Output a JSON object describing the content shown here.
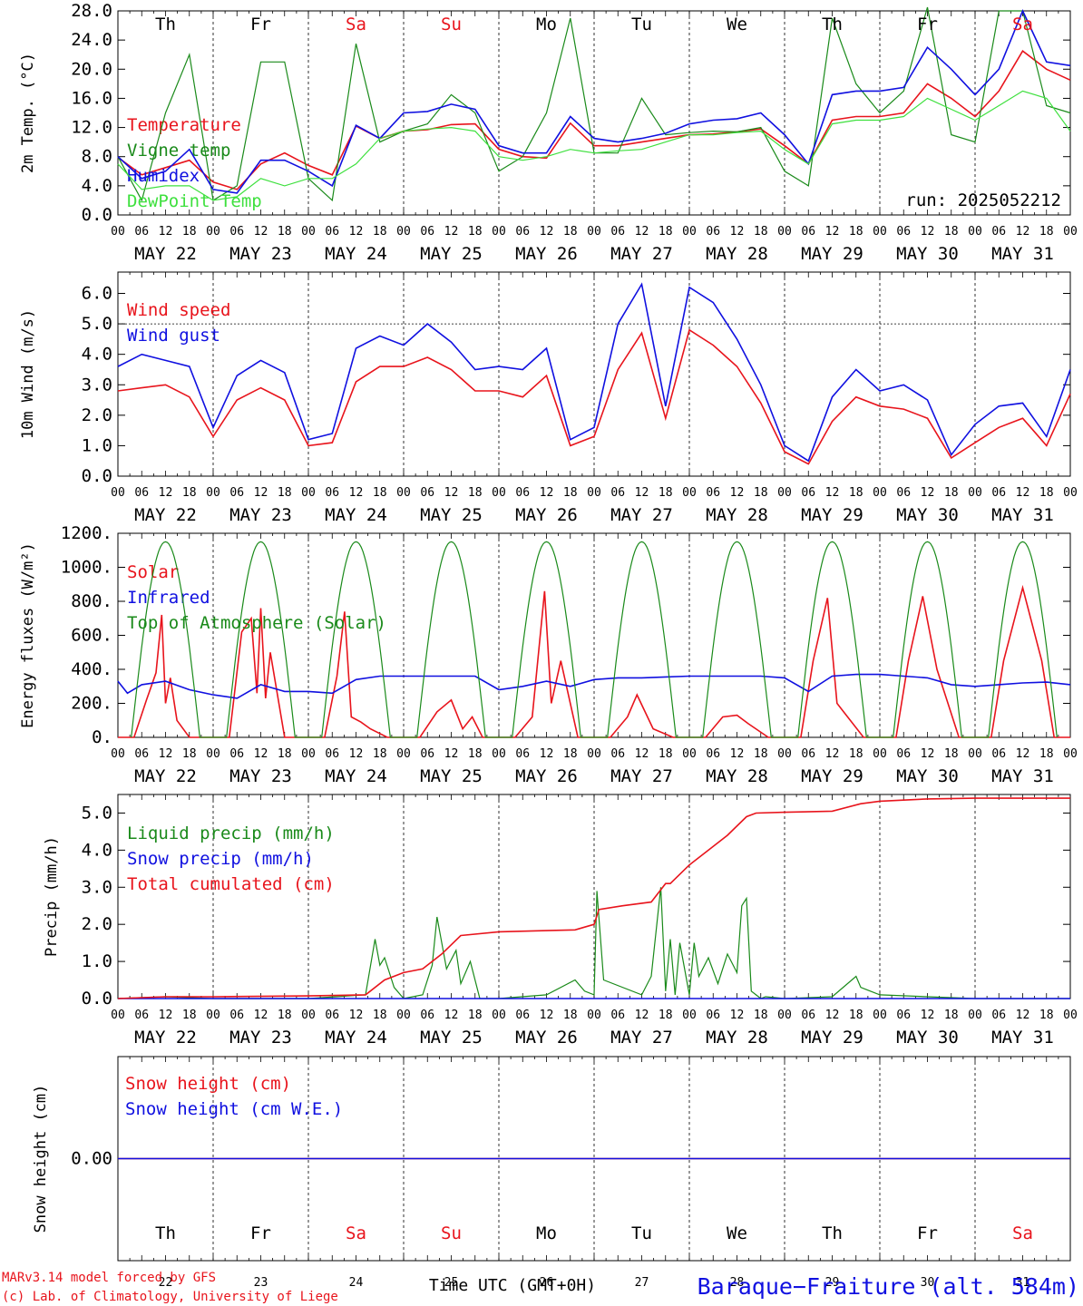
{
  "colors": {
    "red": "#e8141c",
    "darkgreen": "#1a8a1a",
    "blue": "#1010e0",
    "lightgreen": "#3ee03e",
    "weekday": "#000000",
    "weekend": "#e8141c"
  },
  "dates": [
    "MAY 22",
    "MAY 23",
    "MAY 24",
    "MAY 25",
    "MAY 26",
    "MAY 27",
    "MAY 28",
    "MAY 29",
    "MAY 30",
    "MAY 31"
  ],
  "day_numbers": [
    "22",
    "23",
    "24",
    "25",
    "26",
    "27",
    "28",
    "29",
    "30",
    "31"
  ],
  "weekdays": [
    "Th",
    "Fr",
    "Sa",
    "Su",
    "Mo",
    "Tu",
    "We",
    "Th",
    "Fr",
    "Sa"
  ],
  "weekend_flags": [
    false,
    false,
    true,
    true,
    false,
    false,
    false,
    false,
    false,
    true
  ],
  "hour_ticks": [
    "00",
    "06",
    "12",
    "18"
  ],
  "last_tick": "00",
  "footer": {
    "model": "MARv3.14 model forced by GFS",
    "lab": "(c) Lab. of Climatology, University of Liege",
    "xlabel": "Time UTC (GMT+0H)",
    "location": "Baraque−Fraiture (alt. 584m)"
  },
  "chart_data": [
    {
      "type": "line",
      "ylabel": "2m Temp. (°C)",
      "ylim": [
        0,
        28
      ],
      "yticks": [
        "0.0",
        "4.0",
        "8.0",
        "12.0",
        "16.0",
        "20.0",
        "24.0",
        "28.0"
      ],
      "run_label": "run: 2025052212",
      "x_unit": "days since MAY 22 00 UTC",
      "series": [
        {
          "name": "Temperature",
          "color": "red",
          "x": [
            0,
            0.25,
            0.5,
            0.75,
            1,
            1.25,
            1.5,
            1.75,
            2,
            2.25,
            2.5,
            2.75,
            3,
            3.25,
            3.5,
            3.75,
            4,
            4.25,
            4.5,
            4.75,
            5,
            5.25,
            5.5,
            5.75,
            6,
            6.25,
            6.5,
            6.75,
            7,
            7.25,
            7.5,
            7.75,
            8,
            8.25,
            8.5,
            8.75,
            9,
            9.25,
            9.5,
            9.75,
            10
          ],
          "y": [
            7.9,
            5.5,
            6.5,
            7.5,
            4.5,
            3.5,
            7,
            8.5,
            6.8,
            5.5,
            12.2,
            10.5,
            11.5,
            11.7,
            12.4,
            12.5,
            9,
            8,
            7.8,
            12.6,
            9.5,
            9.5,
            10,
            10.5,
            11,
            11.1,
            11.4,
            11.8,
            9.5,
            7,
            13,
            13.5,
            13.5,
            14,
            18,
            16,
            13.5,
            17,
            22.5,
            20,
            18.5
          ]
        },
        {
          "name": "Vigne temp",
          "color": "darkgreen",
          "x": [
            0,
            0.25,
            0.5,
            0.75,
            1,
            1.25,
            1.5,
            1.75,
            2,
            2.25,
            2.5,
            2.75,
            3,
            3.25,
            3.5,
            3.75,
            4,
            4.25,
            4.5,
            4.75,
            5,
            5.25,
            5.5,
            5.75,
            6,
            6.25,
            6.5,
            6.75,
            7,
            7.25,
            7.5,
            7.75,
            8,
            8.25,
            8.5,
            8.75,
            9,
            9.25,
            9.5,
            9.75,
            10
          ],
          "y": [
            8,
            2,
            14,
            22,
            2,
            4,
            21,
            21,
            5,
            2,
            23.5,
            10,
            11.5,
            12.5,
            16.5,
            14,
            6,
            8,
            14,
            27,
            8.5,
            8.5,
            16,
            11,
            11.3,
            11.5,
            11.4,
            12,
            6,
            4,
            27,
            18,
            14,
            17,
            28.5,
            11,
            10,
            28,
            28,
            15,
            14
          ]
        },
        {
          "name": "Humidex",
          "color": "blue",
          "x": [
            0,
            0.25,
            0.5,
            0.75,
            1,
            1.25,
            1.5,
            1.75,
            2,
            2.25,
            2.5,
            2.75,
            3,
            3.25,
            3.5,
            3.75,
            4,
            4.25,
            4.5,
            4.75,
            5,
            5.25,
            5.5,
            5.75,
            6,
            6.25,
            6.5,
            6.75,
            7,
            7.25,
            7.5,
            7.75,
            8,
            8.25,
            8.5,
            8.75,
            9,
            9.25,
            9.5,
            9.75,
            10
          ],
          "y": [
            8,
            5,
            6,
            9,
            3.5,
            3,
            7.5,
            7.5,
            6,
            4,
            12.3,
            10.5,
            14,
            14.2,
            15.2,
            14.5,
            9.5,
            8.5,
            8.5,
            13.5,
            10.5,
            10,
            10.5,
            11.2,
            12.5,
            13,
            13.2,
            14,
            11,
            7,
            16.5,
            17,
            17,
            17.5,
            23,
            20,
            16.5,
            20,
            28,
            21,
            20.5
          ]
        },
        {
          "name": "DewPoint Temp",
          "color": "lightgreen",
          "x": [
            0,
            0.25,
            0.5,
            0.75,
            1,
            1.25,
            1.5,
            1.75,
            2,
            2.25,
            2.5,
            2.75,
            3,
            3.25,
            3.5,
            3.75,
            4,
            4.25,
            4.5,
            4.75,
            5,
            5.25,
            5.5,
            5.75,
            6,
            6.25,
            6.5,
            6.75,
            7,
            7.25,
            7.5,
            7.75,
            8,
            8.25,
            8.5,
            8.75,
            9,
            9.25,
            9.5,
            9.75,
            10
          ],
          "y": [
            7,
            3.5,
            4,
            4,
            2,
            2.5,
            5,
            4,
            5,
            5,
            7,
            10.5,
            11.5,
            11.8,
            12,
            11.5,
            8,
            7.5,
            8,
            9,
            8.5,
            8.8,
            9,
            10,
            11,
            11,
            11.3,
            11.5,
            9,
            7,
            12.5,
            13,
            13,
            13.5,
            16,
            14.5,
            13,
            15,
            17,
            16,
            11.5
          ]
        }
      ]
    },
    {
      "type": "line",
      "ylabel": "10m Wind (m/s)",
      "ylim": [
        0,
        6.7
      ],
      "yticks": [
        "0.0",
        "1.0",
        "2.0",
        "3.0",
        "4.0",
        "5.0",
        "6.0"
      ],
      "ref_line": 5.0,
      "x_unit": "days since MAY 22 00 UTC",
      "series": [
        {
          "name": "Wind speed",
          "color": "red",
          "x": [
            0,
            0.25,
            0.5,
            0.75,
            1,
            1.25,
            1.5,
            1.75,
            2,
            2.25,
            2.5,
            2.75,
            3,
            3.25,
            3.5,
            3.75,
            4,
            4.25,
            4.5,
            4.75,
            5,
            5.25,
            5.5,
            5.75,
            6,
            6.25,
            6.5,
            6.75,
            7,
            7.25,
            7.5,
            7.75,
            8,
            8.25,
            8.5,
            8.75,
            9,
            9.25,
            9.5,
            9.75,
            10
          ],
          "y": [
            2.8,
            2.9,
            3,
            2.6,
            1.3,
            2.5,
            2.9,
            2.5,
            1,
            1.1,
            3.1,
            3.6,
            3.6,
            3.9,
            3.5,
            2.8,
            2.8,
            2.6,
            3.3,
            1,
            1.3,
            3.5,
            4.7,
            1.9,
            4.8,
            4.3,
            3.6,
            2.4,
            0.8,
            0.4,
            1.8,
            2.6,
            2.3,
            2.2,
            1.9,
            0.6,
            1.1,
            1.6,
            1.9,
            1,
            2.7
          ]
        },
        {
          "name": "Wind gust",
          "color": "blue",
          "x": [
            0,
            0.25,
            0.5,
            0.75,
            1,
            1.25,
            1.5,
            1.75,
            2,
            2.25,
            2.5,
            2.75,
            3,
            3.25,
            3.5,
            3.75,
            4,
            4.25,
            4.5,
            4.75,
            5,
            5.25,
            5.5,
            5.75,
            6,
            6.25,
            6.5,
            6.75,
            7,
            7.25,
            7.5,
            7.75,
            8,
            8.25,
            8.5,
            8.75,
            9,
            9.25,
            9.5,
            9.75,
            10
          ],
          "y": [
            3.6,
            4,
            3.8,
            3.6,
            1.6,
            3.3,
            3.8,
            3.4,
            1.2,
            1.4,
            4.2,
            4.6,
            4.3,
            5,
            4.4,
            3.5,
            3.6,
            3.5,
            4.2,
            1.2,
            1.6,
            5,
            6.3,
            2.3,
            6.2,
            5.7,
            4.5,
            3,
            1,
            0.5,
            2.6,
            3.5,
            2.8,
            3,
            2.5,
            0.7,
            1.7,
            2.3,
            2.4,
            1.3,
            3.5
          ]
        }
      ]
    },
    {
      "type": "line",
      "ylabel": "Energy fluxes (W/m²)",
      "ylim": [
        0,
        1200
      ],
      "yticks": [
        "0.",
        "200.",
        "400.",
        "600.",
        "800.",
        "1000.",
        "1200."
      ],
      "x_unit": "days since MAY 22 00 UTC",
      "series": [
        {
          "name": "Solar",
          "color": "red",
          "x": [
            0,
            0.17,
            0.3,
            0.4,
            0.46,
            0.5,
            0.55,
            0.62,
            0.75,
            0.83,
            1.17,
            1.3,
            1.4,
            1.46,
            1.5,
            1.55,
            1.6,
            1.75,
            1.83,
            2.17,
            2.3,
            2.38,
            2.45,
            2.55,
            2.65,
            2.83,
            3.17,
            3.35,
            3.5,
            3.62,
            3.72,
            3.83,
            4.17,
            4.35,
            4.48,
            4.55,
            4.65,
            4.83,
            5.17,
            5.35,
            5.45,
            5.62,
            5.83,
            6.17,
            6.35,
            6.5,
            6.62,
            6.83,
            7.17,
            7.3,
            7.45,
            7.55,
            7.62,
            7.83,
            8.17,
            8.3,
            8.45,
            8.6,
            8.83,
            9.17,
            9.3,
            9.5,
            9.7,
            9.83,
            10
          ],
          "y": [
            0,
            0,
            220,
            380,
            720,
            200,
            350,
            100,
            0,
            0,
            0,
            620,
            700,
            260,
            760,
            230,
            500,
            0,
            0,
            0,
            360,
            740,
            120,
            90,
            50,
            0,
            0,
            150,
            220,
            50,
            120,
            0,
            0,
            120,
            860,
            200,
            450,
            0,
            0,
            120,
            250,
            50,
            0,
            0,
            120,
            130,
            80,
            0,
            0,
            450,
            820,
            200,
            150,
            0,
            0,
            450,
            830,
            400,
            0,
            0,
            450,
            880,
            450,
            0,
            0
          ]
        },
        {
          "name": "Infrared",
          "color": "blue",
          "x": [
            0,
            0.1,
            0.25,
            0.5,
            0.75,
            1,
            1.25,
            1.5,
            1.75,
            2,
            2.25,
            2.5,
            2.75,
            3,
            3.25,
            3.5,
            3.75,
            4,
            4.25,
            4.5,
            4.75,
            5,
            5.25,
            5.5,
            5.75,
            6,
            6.25,
            6.5,
            6.75,
            7,
            7.25,
            7.5,
            7.75,
            8,
            8.25,
            8.5,
            8.75,
            9,
            9.25,
            9.5,
            9.75,
            10
          ],
          "y": [
            330,
            260,
            310,
            330,
            280,
            250,
            230,
            310,
            270,
            270,
            260,
            340,
            360,
            360,
            360,
            360,
            360,
            280,
            300,
            330,
            300,
            340,
            350,
            350,
            355,
            360,
            360,
            360,
            360,
            350,
            270,
            360,
            370,
            370,
            360,
            350,
            310,
            300,
            310,
            320,
            325,
            310
          ]
        },
        {
          "name": "Top of Atmosphere (Solar)",
          "color": "darkgreen",
          "type": "toa",
          "peak": 1150,
          "sunrise_day_fraction": 0.14,
          "sunset_day_fraction": 0.86
        }
      ]
    },
    {
      "type": "line",
      "ylabel": "Precip (mm/h)",
      "ylim": [
        0,
        5.5
      ],
      "yticks": [
        "0.0",
        "1.0",
        "2.0",
        "3.0",
        "4.0",
        "5.0"
      ],
      "x_unit": "days since MAY 22 00 UTC",
      "series": [
        {
          "name": "Liquid precip (mm/h)",
          "color": "darkgreen",
          "x": [
            0,
            0.5,
            1,
            1.5,
            2,
            2.6,
            2.7,
            2.75,
            2.8,
            2.9,
            3,
            3.2,
            3.3,
            3.35,
            3.45,
            3.55,
            3.6,
            3.7,
            3.8,
            4,
            4.5,
            4.8,
            4.9,
            5,
            5.03,
            5.1,
            5.5,
            5.6,
            5.7,
            5.75,
            5.8,
            5.85,
            5.9,
            6,
            6.05,
            6.1,
            6.2,
            6.3,
            6.4,
            6.5,
            6.55,
            6.6,
            6.65,
            6.7,
            6.75,
            6.8,
            7,
            7.5,
            7.75,
            7.8,
            7.9,
            8,
            8.5,
            9,
            9.5,
            10
          ],
          "y": [
            0,
            0.05,
            0,
            0,
            0,
            0.1,
            1.6,
            0.9,
            1.1,
            0.3,
            0,
            0.1,
            0.9,
            2.2,
            0.8,
            1.3,
            0.4,
            1,
            0,
            0,
            0.1,
            0.5,
            0.2,
            0.1,
            2.9,
            0.5,
            0.1,
            0.6,
            3,
            0.2,
            1.6,
            0.1,
            1.5,
            0.1,
            1.5,
            0.6,
            1.1,
            0.4,
            1.2,
            0.7,
            2.5,
            2.7,
            0.2,
            0.1,
            0,
            0.05,
            0,
            0.05,
            0.6,
            0.3,
            0.2,
            0.1,
            0.05,
            0,
            0,
            0
          ]
        },
        {
          "name": "Snow precip (mm/h)",
          "color": "blue",
          "x": [
            0,
            10
          ],
          "y": [
            0,
            0
          ]
        },
        {
          "name": "Total cumulated (cm)",
          "color": "red",
          "x": [
            0,
            0.5,
            1,
            2,
            2.6,
            2.8,
            3,
            3.2,
            3.4,
            3.6,
            4,
            4.5,
            4.8,
            5,
            5.05,
            5.3,
            5.6,
            5.75,
            5.8,
            6,
            6.2,
            6.4,
            6.6,
            6.7,
            7,
            7.5,
            7.8,
            8,
            8.5,
            9,
            10
          ],
          "y": [
            0,
            0.05,
            0.05,
            0.07,
            0.1,
            0.5,
            0.7,
            0.8,
            1.2,
            1.7,
            1.8,
            1.83,
            1.85,
            2,
            2.4,
            2.5,
            2.6,
            3.1,
            3.1,
            3.6,
            4,
            4.4,
            4.9,
            5,
            5.02,
            5.05,
            5.25,
            5.32,
            5.38,
            5.4,
            5.4
          ]
        }
      ]
    },
    {
      "type": "line",
      "ylabel": "Snow height (cm)",
      "ylim": [
        -1,
        1
      ],
      "yticks": [
        "0.00"
      ],
      "x_unit": "days since MAY 22 00 UTC",
      "series": [
        {
          "name": "Snow height (cm)",
          "color": "red",
          "x": [
            0,
            10
          ],
          "y": [
            0,
            0
          ]
        },
        {
          "name": "Snow height (cm W.E.)",
          "color": "blue",
          "x": [
            0,
            10
          ],
          "y": [
            0,
            0
          ]
        }
      ]
    }
  ]
}
